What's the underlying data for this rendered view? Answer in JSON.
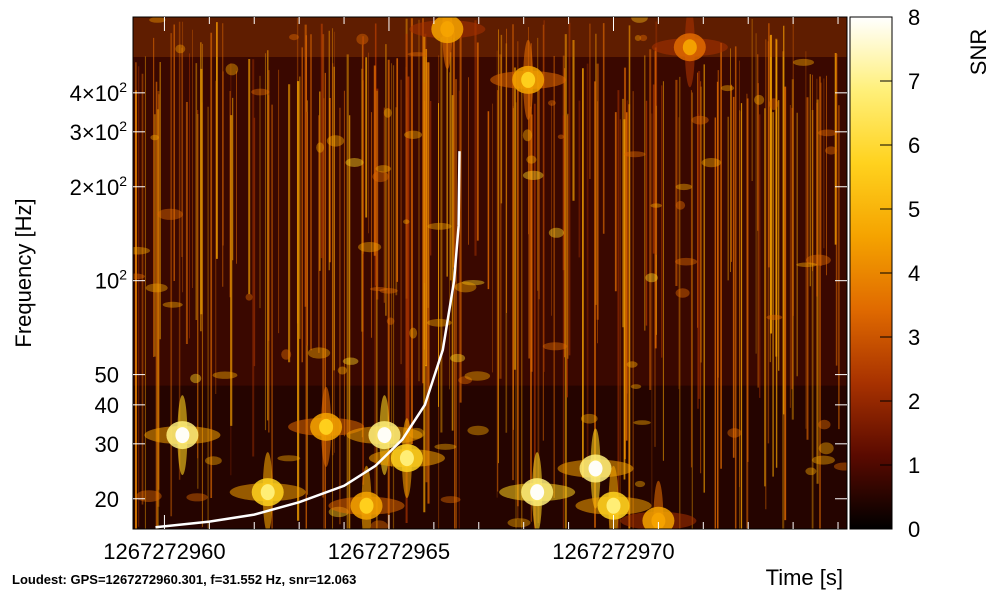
{
  "chart_data": {
    "type": "heatmap",
    "title": "",
    "xlabel": "Time [s]",
    "ylabel": "Frequency [Hz]",
    "colorbar_label": "SNR",
    "xlim": [
      1267272959.3,
      1267272975.2
    ],
    "ylim": [
      16,
      700
    ],
    "y_scale": "log",
    "clim": [
      0,
      8
    ],
    "x_ticks": [
      {
        "value": 1267272960,
        "label": "1267272960"
      },
      {
        "value": 1267272965,
        "label": "1267272965"
      },
      {
        "value": 1267272970,
        "label": "1267272970"
      }
    ],
    "y_ticks": [
      {
        "value": 20,
        "label": "20"
      },
      {
        "value": 30,
        "label": "30"
      },
      {
        "value": 40,
        "label": "40"
      },
      {
        "value": 50,
        "label": "50"
      },
      {
        "value": 100,
        "label": "10",
        "sup": "2"
      },
      {
        "value": 200,
        "label": "2×10",
        "sup": "2"
      },
      {
        "value": 300,
        "label": "3×10",
        "sup": "2"
      },
      {
        "value": 400,
        "label": "4×10",
        "sup": "2"
      }
    ],
    "colorbar_ticks": [
      0,
      1,
      2,
      3,
      4,
      5,
      6,
      7,
      8
    ],
    "colormap": [
      "#000000",
      "#5a0a00",
      "#a83200",
      "#e06a00",
      "#f5a300",
      "#ffd21e",
      "#fff07a",
      "#ffffff"
    ],
    "chirp_color": "#ffffff",
    "chirp_track": [
      {
        "t": 1267272959.8,
        "f": 16.2
      },
      {
        "t": 1267272961.0,
        "f": 16.9
      },
      {
        "t": 1267272962.0,
        "f": 17.8
      },
      {
        "t": 1267272963.0,
        "f": 19.5
      },
      {
        "t": 1267272964.0,
        "f": 22.0
      },
      {
        "t": 1267272964.7,
        "f": 25.5
      },
      {
        "t": 1267272965.3,
        "f": 31.0
      },
      {
        "t": 1267272965.8,
        "f": 40.0
      },
      {
        "t": 1267272966.2,
        "f": 60.0
      },
      {
        "t": 1267272966.45,
        "f": 100.0
      },
      {
        "t": 1267272966.55,
        "f": 150.0
      },
      {
        "t": 1267272966.57,
        "f": 260.0
      }
    ],
    "hot_spots": [
      {
        "t": 1267272960.4,
        "f": 32,
        "snr": 7.5
      },
      {
        "t": 1267272962.3,
        "f": 21,
        "snr": 6.5
      },
      {
        "t": 1267272963.6,
        "f": 34,
        "snr": 5.5
      },
      {
        "t": 1267272964.9,
        "f": 32,
        "snr": 7.5
      },
      {
        "t": 1267272965.4,
        "f": 27,
        "snr": 6.5
      },
      {
        "t": 1267272964.5,
        "f": 19,
        "snr": 6.0
      },
      {
        "t": 1267272968.3,
        "f": 21,
        "snr": 8.0
      },
      {
        "t": 1267272969.6,
        "f": 25,
        "snr": 7.5
      },
      {
        "t": 1267272970.0,
        "f": 19,
        "snr": 7.0
      },
      {
        "t": 1267272971.0,
        "f": 17,
        "snr": 5.0
      },
      {
        "t": 1267272968.1,
        "f": 440,
        "snr": 5.5
      },
      {
        "t": 1267272966.3,
        "f": 640,
        "snr": 5.0
      },
      {
        "t": 1267272971.7,
        "f": 560,
        "snr": 4.5
      }
    ]
  },
  "footer": {
    "loudest": "Loudest: GPS=1267272960.301, f=31.552 Hz, snr=12.063"
  }
}
